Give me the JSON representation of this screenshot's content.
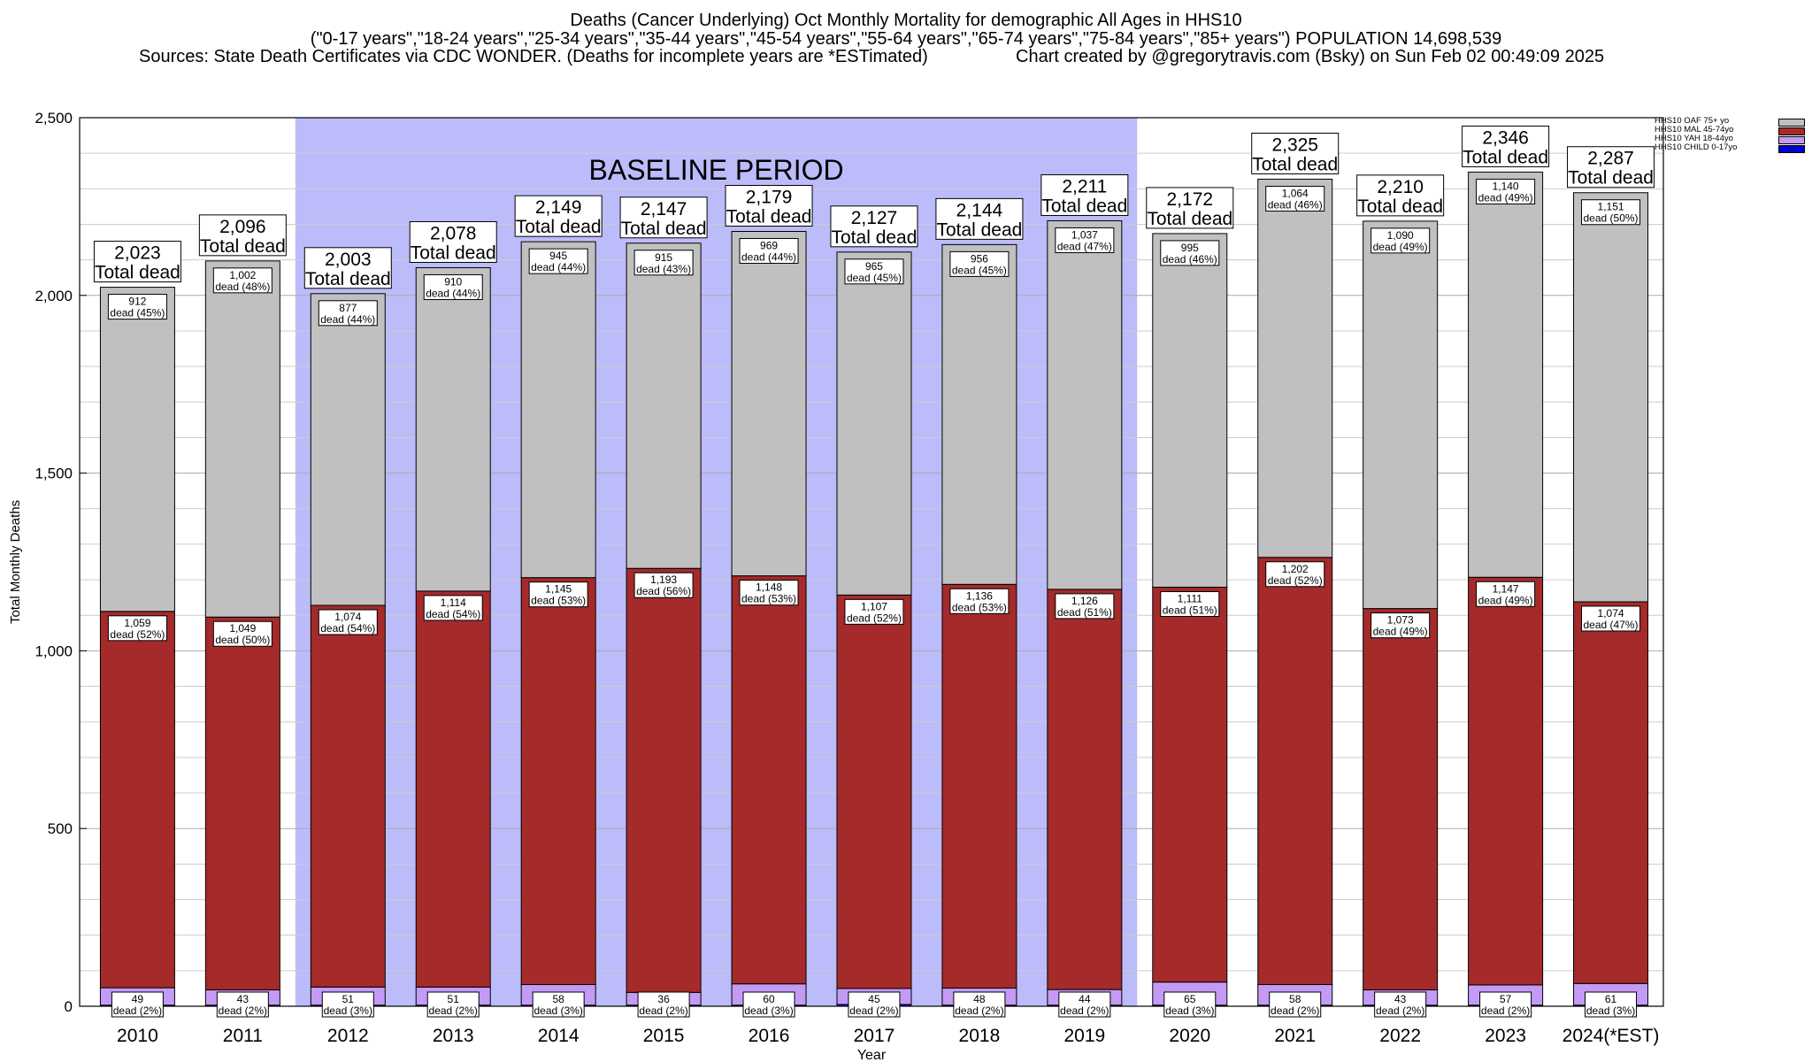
{
  "header": {
    "line1": "Deaths (Cancer Underlying) Oct Monthly Mortality for demographic All Ages in HHS10",
    "line2": "(\"0-17 years\",\"18-24 years\",\"25-34 years\",\"35-44 years\",\"45-54 years\",\"55-64 years\",\"65-74 years\",\"75-84 years\",\"85+ years\") POPULATION 14,698,539",
    "line3_left": "Sources: State Death Certificates via CDC WONDER. (Deaths for incomplete years are *ESTimated)",
    "line3_right": "Chart created by @gregorytravis.com (Bsky) on Sun Feb 02 00:49:09 2025"
  },
  "chart_data": {
    "type": "bar",
    "stacked": true,
    "categories": [
      "2010",
      "2011",
      "2012",
      "2013",
      "2014",
      "2015",
      "2016",
      "2017",
      "2018",
      "2019",
      "2020",
      "2021",
      "2022",
      "2023",
      "2024(*EST)"
    ],
    "xlabel": "Year",
    "ylabel": "Total Monthly Deaths",
    "ylim": [
      0,
      2500
    ],
    "yticks": [
      0,
      500,
      1000,
      1500,
      2000,
      2500
    ],
    "ytick_labels": [
      "0",
      "500",
      "1,000",
      "1,500",
      "2,000",
      "2,500"
    ],
    "grid": true,
    "legend_position": "top-right",
    "baseline_label": "BASELINE PERIOD",
    "baseline_range": [
      "2012",
      "2019"
    ],
    "total_label_suffix": "Total dead",
    "series": [
      {
        "name": "HHS10 CHILD 0-17yo",
        "color": "#0000cc",
        "values": [
          3,
          3,
          3,
          3,
          3,
          3,
          3,
          5,
          3,
          3,
          3,
          3,
          3,
          3,
          3
        ]
      },
      {
        "name": "HHS10 YAH 18-44yo",
        "color": "#c39bf5",
        "values": [
          49,
          43,
          51,
          51,
          58,
          36,
          60,
          45,
          48,
          44,
          65,
          58,
          43,
          57,
          61
        ],
        "labels": [
          "49",
          "43",
          "51",
          "51",
          "58",
          "36",
          "60",
          "45",
          "48",
          "44",
          "65",
          "58",
          "43",
          "57",
          "61"
        ],
        "pct_labels": [
          "dead (2%)",
          "dead (2%)",
          "dead (3%)",
          "dead (2%)",
          "dead (3%)",
          "dead (2%)",
          "dead (3%)",
          "dead (2%)",
          "dead (2%)",
          "dead (2%)",
          "dead (3%)",
          "dead (2%)",
          "dead (2%)",
          "dead (2%)",
          "dead (3%)"
        ]
      },
      {
        "name": "HHS10 MAL 45-74yo",
        "color": "#a52a2a",
        "values": [
          1059,
          1049,
          1074,
          1114,
          1145,
          1193,
          1148,
          1107,
          1136,
          1126,
          1111,
          1202,
          1073,
          1147,
          1074
        ],
        "labels": [
          "1,059",
          "1,049",
          "1,074",
          "1,114",
          "1,145",
          "1,193",
          "1,148",
          "1,107",
          "1,136",
          "1,126",
          "1,111",
          "1,202",
          "1,073",
          "1,147",
          "1,074"
        ],
        "pct_labels": [
          "dead (52%)",
          "dead (50%)",
          "dead (54%)",
          "dead (54%)",
          "dead (53%)",
          "dead (56%)",
          "dead (53%)",
          "dead (52%)",
          "dead (53%)",
          "dead (51%)",
          "dead (51%)",
          "dead (52%)",
          "dead (49%)",
          "dead (49%)",
          "dead (47%)"
        ]
      },
      {
        "name": "HHS10 OAF 75+ yo",
        "color": "#c0c0c0",
        "values": [
          912,
          1002,
          877,
          910,
          945,
          915,
          969,
          965,
          956,
          1037,
          995,
          1064,
          1090,
          1140,
          1151
        ],
        "labels": [
          "912",
          "1,002",
          "877",
          "910",
          "945",
          "915",
          "969",
          "965",
          "956",
          "1,037",
          "995",
          "1,064",
          "1,090",
          "1,140",
          "1,151"
        ],
        "pct_labels": [
          "dead (45%)",
          "dead (48%)",
          "dead (44%)",
          "dead (44%)",
          "dead (44%)",
          "dead (43%)",
          "dead (44%)",
          "dead (45%)",
          "dead (45%)",
          "dead (47%)",
          "dead (46%)",
          "dead (46%)",
          "dead (49%)",
          "dead (49%)",
          "dead (50%)"
        ]
      }
    ],
    "totals": [
      2023,
      2096,
      2003,
      2078,
      2149,
      2147,
      2179,
      2127,
      2144,
      2211,
      2172,
      2325,
      2210,
      2346,
      2287
    ],
    "total_labels": [
      "2,023",
      "2,096",
      "2,003",
      "2,078",
      "2,149",
      "2,147",
      "2,179",
      "2,127",
      "2,144",
      "2,211",
      "2,172",
      "2,325",
      "2,210",
      "2,346",
      "2,287"
    ]
  },
  "legend": {
    "items": [
      {
        "label": "HHS10 OAF 75+ yo",
        "color": "#c0c0c0"
      },
      {
        "label": "HHS10 MAL 45-74yo",
        "color": "#a52a2a"
      },
      {
        "label": "HHS10 YAH 18-44yo",
        "color": "#c39bf5"
      },
      {
        "label": "HHS10 CHILD 0-17yo",
        "color": "#0000cc"
      }
    ]
  }
}
